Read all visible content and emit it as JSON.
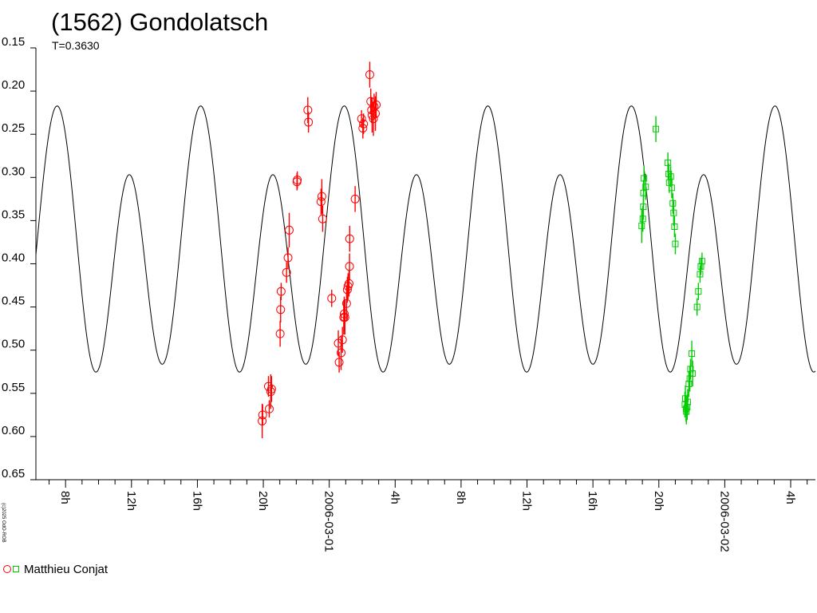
{
  "chart_data": {
    "type": "scatter",
    "title": "(1562) Gondolatsch",
    "subtitle": "T=0.3630",
    "y_axis": {
      "ticks": [
        "0.15",
        "0.20",
        "0.25",
        "0.30",
        "0.35",
        "0.40",
        "0.45",
        "0.50",
        "0.55",
        "0.60",
        "0.65"
      ],
      "range": [
        0.15,
        0.65
      ],
      "inverted": true
    },
    "x_axis": {
      "range_hours": [
        6.2,
        53.5
      ],
      "major_ticks": [
        {
          "hour": 8,
          "label": "8h"
        },
        {
          "hour": 12,
          "label": "12h"
        },
        {
          "hour": 16,
          "label": "16h"
        },
        {
          "hour": 20,
          "label": "20h"
        },
        {
          "hour": 24,
          "label": "2006-03-01"
        },
        {
          "hour": 28,
          "label": "4h"
        },
        {
          "hour": 32,
          "label": "8h"
        },
        {
          "hour": 36,
          "label": "12h"
        },
        {
          "hour": 40,
          "label": "16h"
        },
        {
          "hour": 44,
          "label": "20h"
        },
        {
          "hour": 48,
          "label": "2006-03-02"
        },
        {
          "hour": 52,
          "label": "4h"
        },
        {
          "hour": 56,
          "label": "8h"
        }
      ]
    },
    "fit_curve": {
      "period_hours": 8.712,
      "mean": 0.387,
      "description": "two-peaked lightcurve fit",
      "color": "#000000"
    },
    "series": [
      {
        "name": "Matthieu Conjat",
        "marker": "circle",
        "color": "#ff0000",
        "points": [
          [
            19.93,
            0.582,
            0.02
          ],
          [
            19.96,
            0.575,
            0.012
          ],
          [
            20.36,
            0.568,
            0.01
          ],
          [
            20.31,
            0.542,
            0.012
          ],
          [
            20.45,
            0.548,
            0.02
          ],
          [
            20.5,
            0.545,
            0.015
          ],
          [
            21.02,
            0.481,
            0.015
          ],
          [
            21.05,
            0.453,
            0.015
          ],
          [
            21.08,
            0.432,
            0.01
          ],
          [
            21.41,
            0.41,
            0.012
          ],
          [
            21.5,
            0.393,
            0.012
          ],
          [
            21.57,
            0.361,
            0.02
          ],
          [
            22.04,
            0.305,
            0.01
          ],
          [
            22.06,
            0.303,
            0.01
          ],
          [
            22.7,
            0.222,
            0.015
          ],
          [
            22.74,
            0.236,
            0.012
          ],
          [
            23.5,
            0.328,
            0.015
          ],
          [
            23.55,
            0.322,
            0.02
          ],
          [
            23.6,
            0.348,
            0.015
          ],
          [
            24.15,
            0.44,
            0.01
          ],
          [
            24.55,
            0.492,
            0.015
          ],
          [
            24.6,
            0.514,
            0.012
          ],
          [
            24.72,
            0.503,
            0.02
          ],
          [
            24.8,
            0.488,
            0.015
          ],
          [
            24.88,
            0.462,
            0.02
          ],
          [
            24.91,
            0.458,
            0.02
          ],
          [
            24.95,
            0.462,
            0.02
          ],
          [
            25.05,
            0.446,
            0.02
          ],
          [
            25.1,
            0.43,
            0.015
          ],
          [
            25.14,
            0.426,
            0.015
          ],
          [
            25.2,
            0.423,
            0.015
          ],
          [
            25.23,
            0.403,
            0.015
          ],
          [
            25.24,
            0.371,
            0.015
          ],
          [
            25.57,
            0.325,
            0.015
          ],
          [
            25.96,
            0.232,
            0.01
          ],
          [
            26.04,
            0.243,
            0.012
          ],
          [
            26.08,
            0.238,
            0.012
          ],
          [
            26.46,
            0.181,
            0.015
          ],
          [
            26.52,
            0.212,
            0.015
          ],
          [
            26.57,
            0.222,
            0.015
          ],
          [
            26.6,
            0.228,
            0.02
          ],
          [
            26.68,
            0.232,
            0.02
          ],
          [
            26.72,
            0.218,
            0.015
          ],
          [
            26.8,
            0.226,
            0.02
          ],
          [
            26.85,
            0.216,
            0.015
          ]
        ]
      },
      {
        "name": "Matthieu Conjat",
        "marker": "square",
        "color": "#00cc00",
        "points": [
          [
            42.96,
            0.356,
            0.02
          ],
          [
            43.03,
            0.348,
            0.015
          ],
          [
            43.06,
            0.334,
            0.015
          ],
          [
            43.07,
            0.318,
            0.015
          ],
          [
            43.1,
            0.301,
            0.015
          ],
          [
            43.2,
            0.311,
            0.015
          ],
          [
            43.82,
            0.244,
            0.015
          ],
          [
            44.55,
            0.283,
            0.012
          ],
          [
            44.6,
            0.296,
            0.012
          ],
          [
            44.63,
            0.306,
            0.012
          ],
          [
            44.72,
            0.299,
            0.012
          ],
          [
            44.78,
            0.312,
            0.012
          ],
          [
            44.85,
            0.33,
            0.012
          ],
          [
            44.9,
            0.341,
            0.015
          ],
          [
            44.95,
            0.357,
            0.012
          ],
          [
            45.0,
            0.377,
            0.012
          ],
          [
            45.58,
            0.563,
            0.015
          ],
          [
            45.61,
            0.556,
            0.015
          ],
          [
            45.65,
            0.568,
            0.015
          ],
          [
            45.67,
            0.571,
            0.015
          ],
          [
            45.72,
            0.566,
            0.015
          ],
          [
            45.75,
            0.56,
            0.015
          ],
          [
            45.82,
            0.539,
            0.015
          ],
          [
            45.88,
            0.533,
            0.015
          ],
          [
            45.92,
            0.522,
            0.012
          ],
          [
            46.0,
            0.504,
            0.015
          ],
          [
            46.05,
            0.527,
            0.015
          ],
          [
            46.32,
            0.45,
            0.01
          ],
          [
            46.4,
            0.432,
            0.01
          ],
          [
            46.5,
            0.412,
            0.01
          ],
          [
            46.55,
            0.403,
            0.01
          ],
          [
            46.62,
            0.397,
            0.01
          ]
        ]
      }
    ],
    "legend": {
      "label": "Matthieu Conjat",
      "placement": "bottom-left"
    }
  },
  "watermark": "(c)2025 OdO-ROB"
}
